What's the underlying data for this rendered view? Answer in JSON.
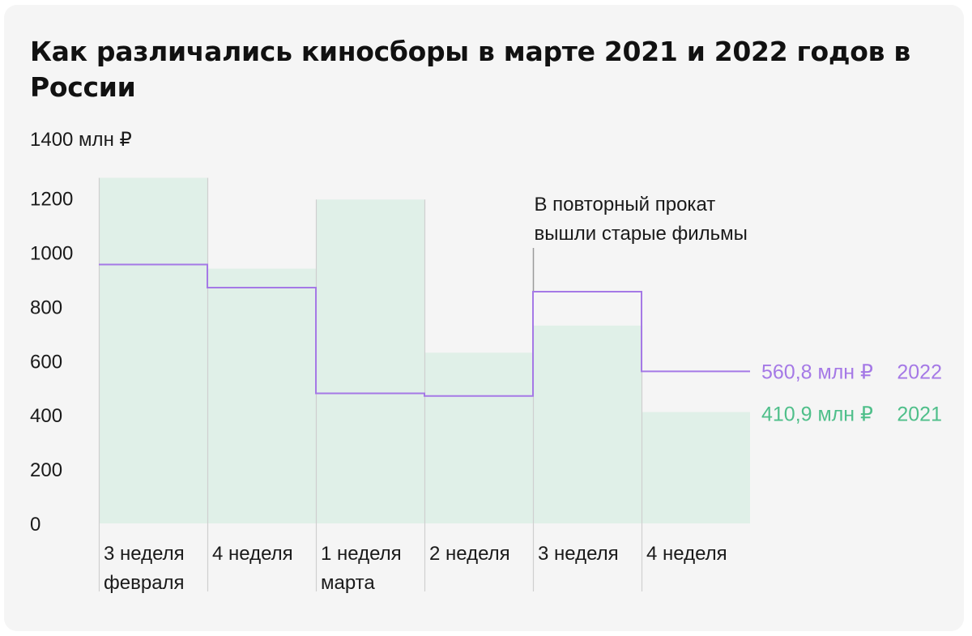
{
  "title": "Как различались киносборы в марте 2021 и 2022 годов в России",
  "chart_data": {
    "type": "bar",
    "title": "Как различались киносборы в марте 2021 и 2022 годов в России",
    "ylabel": "1400 млн ₽",
    "ylim": [
      0,
      1400
    ],
    "yticks": [
      "0",
      "200",
      "400",
      "600",
      "800",
      "1000",
      "1200"
    ],
    "categories": [
      [
        "3 неделя",
        "февраля"
      ],
      [
        "4 неделя"
      ],
      [
        "1 неделя",
        "марта"
      ],
      [
        "2 неделя"
      ],
      [
        "3 неделя"
      ],
      [
        "4 неделя"
      ]
    ],
    "series": [
      {
        "name": "2021",
        "style": "bar",
        "color": "#e0f0e8",
        "values": [
          1275,
          940,
          1195,
          630,
          730,
          410.9
        ],
        "end_label": "410,9 млн ₽",
        "label_color": "#4fbf8a"
      },
      {
        "name": "2022",
        "style": "step",
        "color": "#a579e6",
        "values": [
          955,
          870,
          480,
          470,
          855,
          560.8
        ],
        "end_label": "560,8 млн ₽",
        "label_color": "#a579e6"
      }
    ],
    "annotation": {
      "text": [
        "В повторный прокат",
        "вышли старые фильмы"
      ],
      "category_index": 4
    },
    "colors": {
      "divider": "#cfcfcf",
      "annotation_line": "#9a9a9a"
    }
  }
}
